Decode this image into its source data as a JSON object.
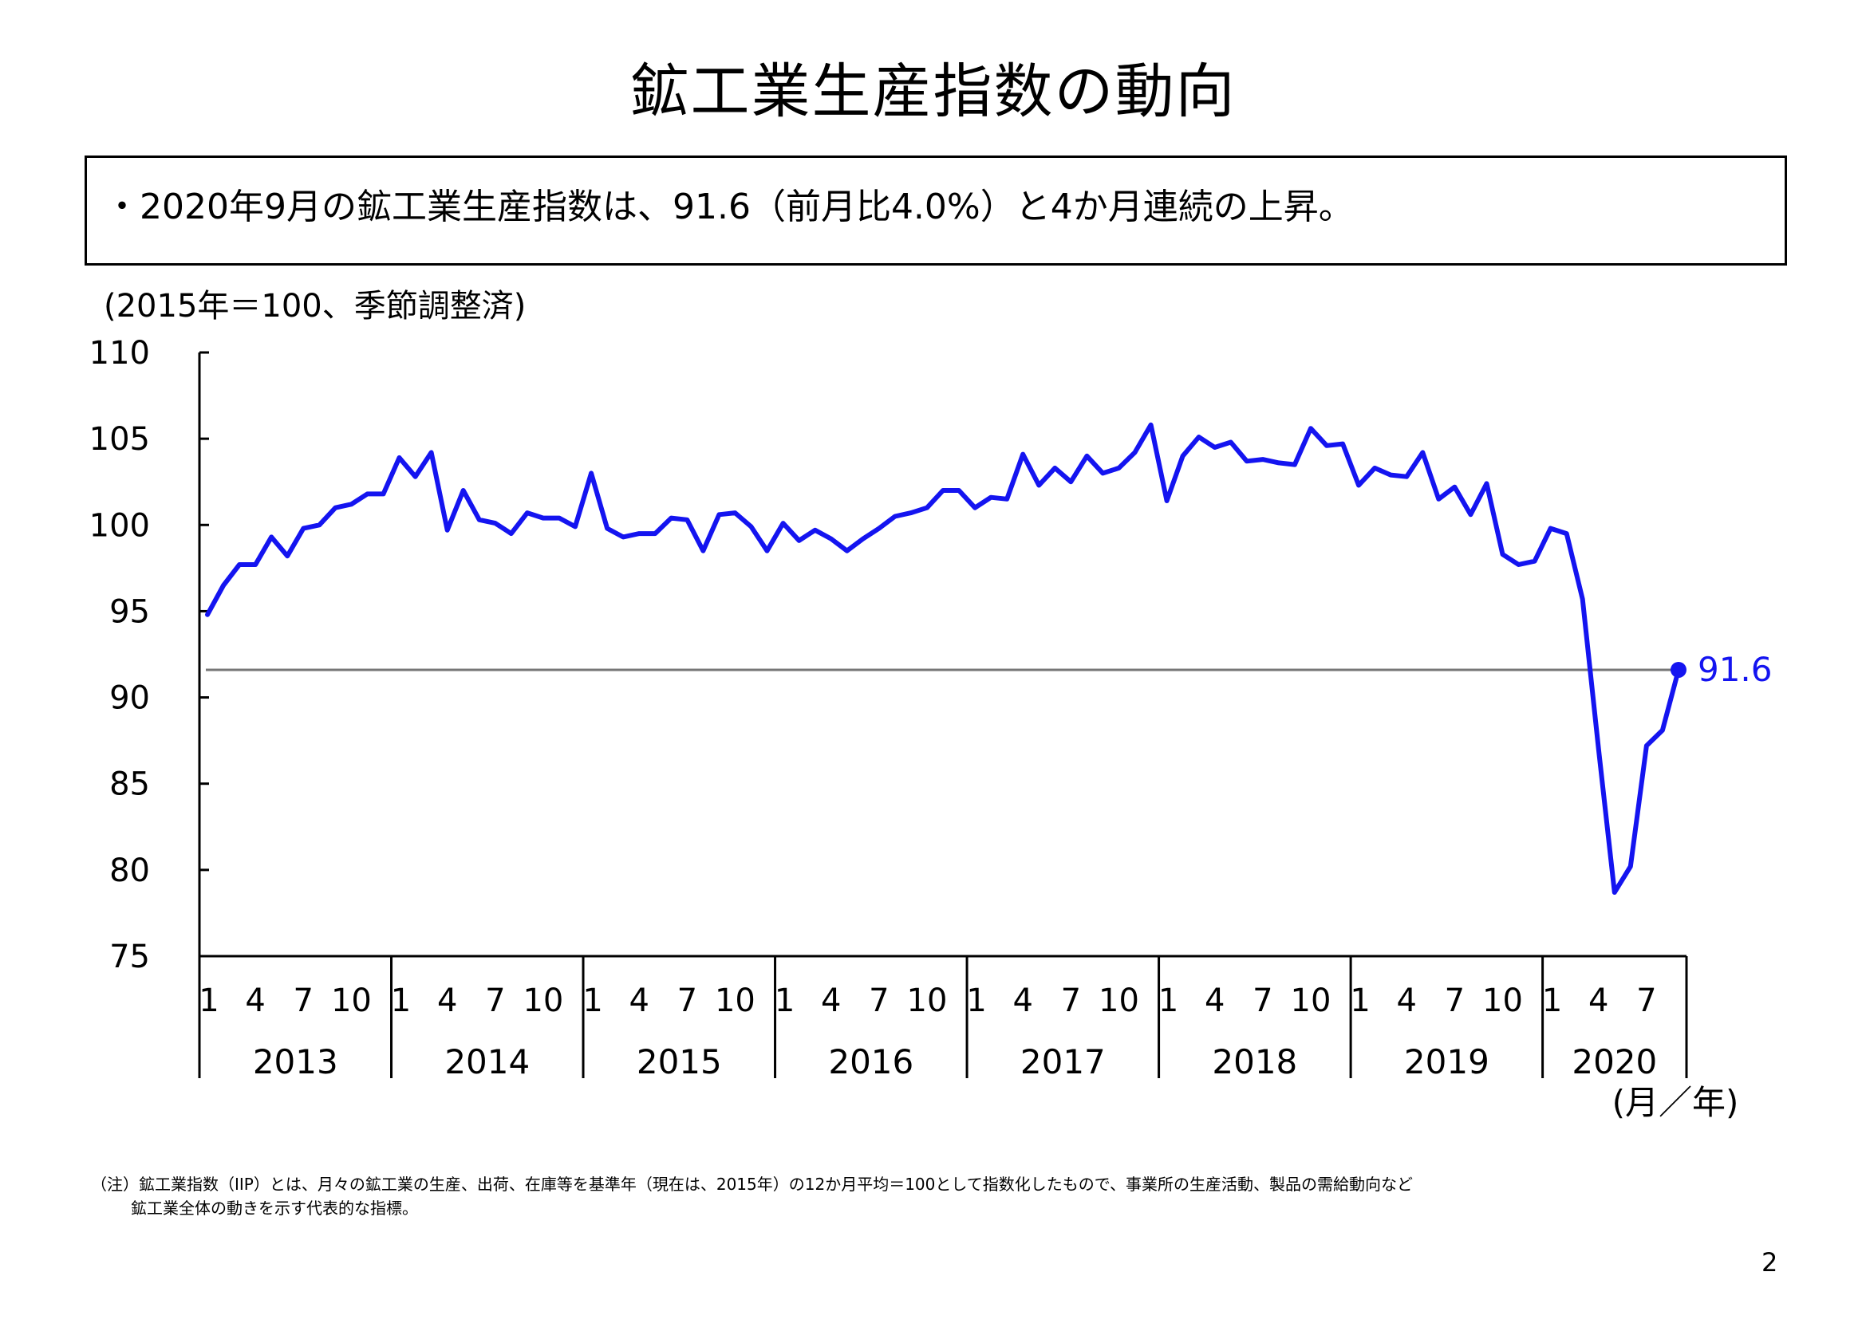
{
  "page": {
    "title": "鉱工業生産指数の動向",
    "summary": "・2020年9月の鉱工業生産指数は、91.6（前月比4.0%）と4か月連続の上昇。",
    "note_line1": "（注）鉱工業指数（IIP）とは、月々の鉱工業の生産、出荷、在庫等を基準年（現在は、2015年）の12か月平均＝100として指数化したもので、事業所の生産活動、製品の需給動向など",
    "note_line2": "鉱工業全体の動きを示す代表的な指標。",
    "page_number": "2"
  },
  "chart_data": {
    "type": "line",
    "unit_label": "(2015年＝100、季節調整済)",
    "xlabel": "(月／年)",
    "ylim": [
      75,
      110
    ],
    "yticks": [
      "110",
      "105",
      "100",
      "95",
      "90",
      "85",
      "80",
      "75"
    ],
    "month_ticks": [
      "1",
      "4",
      "7",
      "10"
    ],
    "years": [
      "2013",
      "2014",
      "2015",
      "2016",
      "2017",
      "2018",
      "2019",
      "2020"
    ],
    "year_months": [
      12,
      12,
      12,
      12,
      12,
      12,
      12,
      9
    ],
    "series": [
      {
        "color": "#1414f0",
        "values": [
          94.8,
          96.5,
          97.7,
          97.7,
          99.3,
          98.2,
          99.8,
          100.0,
          101.0,
          101.2,
          101.8,
          101.8,
          103.9,
          102.8,
          104.2,
          99.7,
          102.0,
          100.3,
          100.1,
          99.5,
          100.7,
          100.4,
          100.4,
          99.9,
          103.0,
          99.8,
          99.3,
          99.5,
          99.5,
          100.4,
          100.3,
          98.5,
          100.6,
          100.7,
          99.9,
          98.5,
          100.1,
          99.1,
          99.7,
          99.2,
          98.5,
          99.2,
          99.8,
          100.5,
          100.7,
          101.0,
          102.0,
          102.0,
          101.0,
          101.6,
          101.5,
          104.1,
          102.3,
          103.3,
          102.5,
          104.0,
          103.0,
          103.3,
          104.2,
          105.8,
          101.4,
          104.0,
          105.1,
          104.5,
          104.8,
          103.7,
          103.8,
          103.6,
          103.5,
          105.6,
          104.6,
          104.7,
          102.3,
          103.3,
          102.9,
          102.8,
          104.2,
          101.5,
          102.2,
          100.6,
          102.4,
          98.3,
          97.7,
          97.9,
          99.8,
          99.5,
          95.7,
          87.0,
          78.7,
          80.2,
          87.2,
          88.1,
          91.6
        ]
      }
    ],
    "reference_line": 91.6,
    "last_value_label": "91.6",
    "axis_color": "#000000",
    "reference_color": "#777777"
  }
}
